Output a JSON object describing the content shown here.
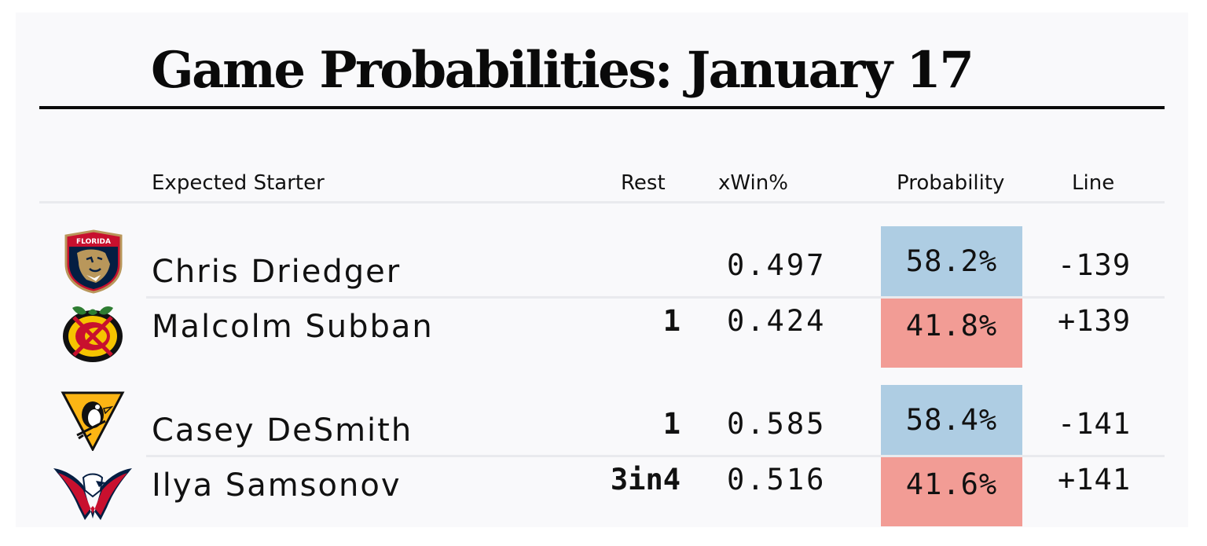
{
  "title": "Game Probabilities: January 17",
  "columns": {
    "starter": "Expected Starter",
    "rest": "Rest",
    "xwin": "xWin%",
    "probability": "Probability",
    "line": "Line"
  },
  "games": [
    {
      "teams": [
        {
          "logo_icon": "florida-panthers-logo-icon",
          "logo_text": "FLORIDA",
          "starter": "Chris Driedger",
          "rest": "",
          "xwin": "0.497",
          "probability": "58.2%",
          "line": "-139",
          "color": "#aecde3"
        },
        {
          "logo_icon": "chicago-blackhawks-logo-icon",
          "starter": "Malcolm Subban",
          "rest": "1",
          "xwin": "0.424",
          "probability": "41.8%",
          "line": "+139",
          "color": "#f29c95"
        }
      ]
    },
    {
      "teams": [
        {
          "logo_icon": "pittsburgh-penguins-logo-icon",
          "starter": "Casey DeSmith",
          "rest": "1",
          "xwin": "0.585",
          "probability": "58.4%",
          "line": "-141",
          "color": "#aecde3"
        },
        {
          "logo_icon": "washington-capitals-logo-icon",
          "starter": "Ilya Samsonov",
          "rest": "3in4",
          "xwin": "0.516",
          "probability": "41.6%",
          "line": "+141",
          "color": "#f29c95"
        }
      ]
    }
  ]
}
